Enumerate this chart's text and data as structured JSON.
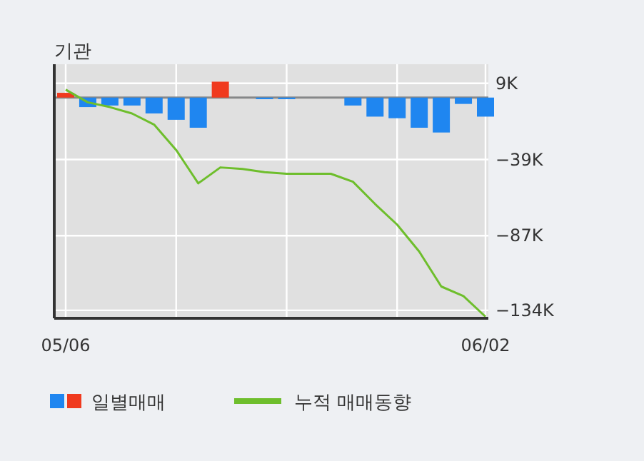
{
  "chart_data": {
    "type": "bar",
    "title": "기관",
    "categories": [
      "05/06",
      null,
      null,
      null,
      null,
      null,
      null,
      null,
      null,
      null,
      null,
      null,
      null,
      null,
      null,
      null,
      null,
      null,
      null,
      "06/02"
    ],
    "series": [
      {
        "name": "일별매매",
        "color": "#1f86f0",
        "colors": [
          "#f03a1e",
          "#1f86f0",
          "#1f86f0",
          "#1f86f0",
          "#1f86f0",
          "#1f86f0",
          "#1f86f0",
          "#f03a1e",
          "#1f86f0",
          "#1f86f0",
          "#1f86f0",
          "#1f86f0",
          "#1f86f0",
          "#1f86f0",
          "#1f86f0",
          "#1f86f0",
          "#1f86f0",
          "#1f86f0",
          "#1f86f0",
          "#1f86f0"
        ],
        "values": [
          3,
          -6,
          -5,
          -5,
          -10,
          -14,
          -19,
          10,
          0,
          -1,
          -1,
          0,
          0,
          -5,
          -12,
          -13,
          -19,
          -22,
          -4,
          -12
        ]
      },
      {
        "name": "누적 매매동향",
        "type": "line",
        "color": "#6ebe2c",
        "values": [
          5,
          -3,
          -6,
          -10,
          -17,
          -33,
          -54,
          -44,
          -45,
          -47,
          -48,
          -48,
          -48,
          -53,
          -67,
          -80,
          -97,
          -119,
          -125,
          -138
        ]
      }
    ],
    "ylim": [
      -139,
      21
    ],
    "yticks": [
      {
        "value": 9,
        "label": "9K"
      },
      {
        "value": -39,
        "label": "−39K"
      },
      {
        "value": -87,
        "label": "−87K"
      },
      {
        "value": -134,
        "label": "−134K"
      }
    ],
    "grid": true,
    "legend": "bottom"
  }
}
